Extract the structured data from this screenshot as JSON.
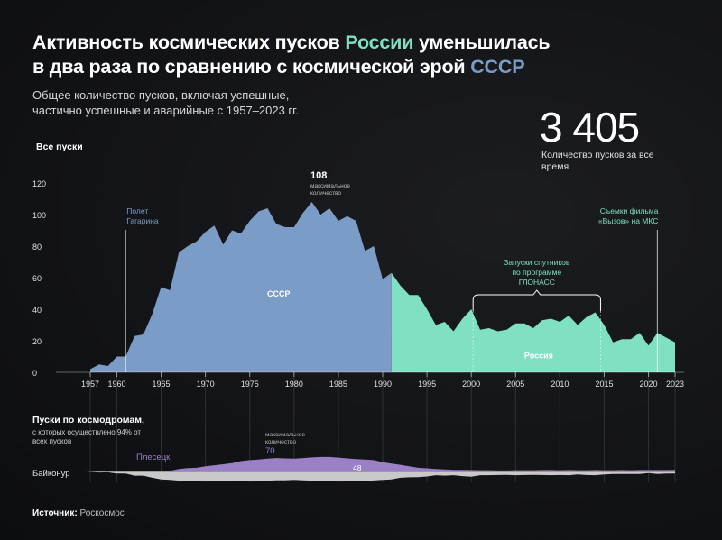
{
  "header": {
    "title_part1": "Активность космических пусков ",
    "title_russia": "России",
    "title_part2": " уменьшилась",
    "title_line2": "в два раза по сравнению с космической эрой ",
    "title_ussr": "СССР",
    "subtitle_line1": "Общее количество пусков, включая успешные,",
    "subtitle_line2": "частично успешные и аварийные с 1957–2023 гг."
  },
  "total": {
    "value": "3 405",
    "label": "Количество пусков за все время"
  },
  "source": {
    "label": "Источник:",
    "value": "Роскосмос"
  },
  "colors": {
    "ussr": "#7b9cc6",
    "russia": "#7fe0c3",
    "plesetsk": "#9b7fc7",
    "baikonur": "#c9c9c9",
    "accent_text_ussr": "#7b9cc6"
  },
  "chart_data": [
    {
      "type": "area",
      "ylabel": "Все пуски",
      "ylim": [
        0,
        120
      ],
      "yticks": [
        "0",
        "20",
        "40",
        "60",
        "80",
        "100",
        "120"
      ],
      "xticks": [
        "1957",
        "1960",
        "1965",
        "1970",
        "1975",
        "1980",
        "1985",
        "1990",
        "1995",
        "2000",
        "2005",
        "2010",
        "2015",
        "2020",
        "2023"
      ],
      "x": [
        1957,
        1958,
        1959,
        1960,
        1961,
        1962,
        1963,
        1964,
        1965,
        1966,
        1967,
        1968,
        1969,
        1970,
        1971,
        1972,
        1973,
        1974,
        1975,
        1976,
        1977,
        1978,
        1979,
        1980,
        1981,
        1982,
        1983,
        1984,
        1985,
        1986,
        1987,
        1988,
        1989,
        1990,
        1991,
        1992,
        1993,
        1994,
        1995,
        1996,
        1997,
        1998,
        1999,
        2000,
        2001,
        2002,
        2003,
        2004,
        2005,
        2006,
        2007,
        2008,
        2009,
        2010,
        2011,
        2012,
        2013,
        2014,
        2015,
        2016,
        2017,
        2018,
        2019,
        2020,
        2021,
        2022,
        2023
      ],
      "series": [
        {
          "name": "СССР",
          "from": 1957,
          "to": 1991
        },
        {
          "name": "Россия",
          "from": 1991,
          "to": 2023
        }
      ],
      "values": [
        2,
        5,
        4,
        10,
        10,
        23,
        24,
        37,
        54,
        52,
        76,
        80,
        83,
        89,
        93,
        81,
        90,
        88,
        96,
        102,
        104,
        94,
        92,
        92,
        101,
        108,
        100,
        104,
        96,
        99,
        96,
        77,
        80,
        59,
        63,
        55,
        49,
        49,
        40,
        30,
        32,
        26,
        34,
        40,
        27,
        28,
        26,
        27,
        31,
        31,
        28,
        33,
        34,
        32,
        36,
        30,
        35,
        38,
        30,
        19,
        21,
        21,
        25,
        17,
        25,
        22,
        19
      ],
      "annotations": [
        {
          "text_lines": [
            "108",
            "максимальное",
            "количество"
          ]
        },
        {
          "text_lines": [
            "Полет",
            "Гагарина"
          ],
          "x": 1961
        },
        {
          "text_lines": [
            "Запуски спутников",
            "по программе",
            "ГЛОНАСС"
          ],
          "x_from": 2000,
          "x_to": 2015
        },
        {
          "text_lines": [
            "Съемки фильма",
            "«Вызов» на МКС"
          ],
          "x": 2021
        }
      ],
      "area_labels": {
        "ussr": "СССР",
        "russia": "Россия"
      }
    },
    {
      "type": "area",
      "title": "Пуски по космодромам,",
      "subtitle": "с которых осуществлено 94% от всех пусков",
      "series": [
        {
          "name": "Плесецк",
          "values": [
            0,
            0,
            0,
            0,
            0,
            0,
            0,
            0,
            1,
            3,
            12,
            16,
            18,
            25,
            30,
            35,
            40,
            50,
            55,
            58,
            62,
            65,
            63,
            62,
            65,
            68,
            70,
            70,
            67,
            63,
            60,
            58,
            55,
            45,
            38,
            32,
            25,
            18,
            15,
            12,
            10,
            8,
            8,
            7,
            6,
            6,
            5,
            5,
            6,
            6,
            6,
            7,
            7,
            6,
            7,
            6,
            6,
            7,
            6,
            6,
            7,
            6,
            7,
            7,
            7,
            7,
            8
          ]
        },
        {
          "name": "Байконур",
          "values": [
            2,
            5,
            4,
            10,
            10,
            20,
            20,
            30,
            38,
            40,
            44,
            45,
            45,
            46,
            48,
            46,
            48,
            46,
            44,
            45,
            44,
            42,
            42,
            40,
            42,
            44,
            45,
            48,
            44,
            46,
            47,
            45,
            43,
            40,
            38,
            30,
            28,
            27,
            24,
            18,
            20,
            18,
            22,
            25,
            18,
            18,
            17,
            16,
            18,
            17,
            16,
            17,
            18,
            17,
            18,
            14,
            17,
            18,
            14,
            12,
            12,
            12,
            12,
            8,
            12,
            10,
            10
          ]
        }
      ],
      "annotations": [
        {
          "text_lines": [
            "максимальное",
            "количество",
            "70"
          ]
        },
        {
          "text": "48"
        }
      ]
    }
  ]
}
